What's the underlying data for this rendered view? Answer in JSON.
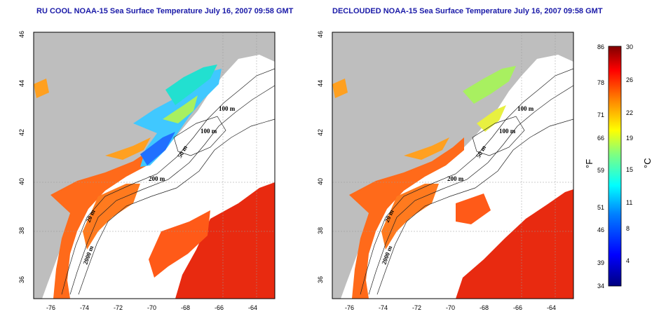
{
  "left_panel": {
    "title": "RU COOL NOAA-15 Sea Surface Temperature July 16, 2007 09:58 GMT"
  },
  "right_panel": {
    "title": "DECLOUDED NOAA-15 Sea Surface Temperature July 16, 2007 09:58 GMT"
  },
  "axes": {
    "lat_ticks": [
      "46",
      "44",
      "42",
      "40",
      "38",
      "36"
    ],
    "lon_ticks": [
      "-76",
      "-74",
      "-72",
      "-70",
      "-68",
      "-66",
      "-64"
    ]
  },
  "contour_labels": [
    "100 m",
    "100 m",
    "200 m",
    "50 m",
    "20 m",
    "2000 m"
  ],
  "colorbar": {
    "unit_f": "°F",
    "unit_c": "°C",
    "f_ticks": [
      "86",
      "78",
      "71",
      "66",
      "59",
      "51",
      "46",
      "39",
      "34"
    ],
    "c_ticks": [
      "30",
      "26",
      "22",
      "19",
      "15",
      "11",
      "8",
      "4"
    ],
    "colors": [
      "#00007f",
      "#0000ff",
      "#0080ff",
      "#00ffff",
      "#80ff80",
      "#ffff00",
      "#ff8000",
      "#ff0000",
      "#800000"
    ]
  },
  "colors": {
    "land": "#bebebe",
    "cloud": "#ffffff",
    "warm_sst": "#ff6a1a",
    "hot_sst": "#e82a10",
    "title": "#1a1aa8"
  }
}
